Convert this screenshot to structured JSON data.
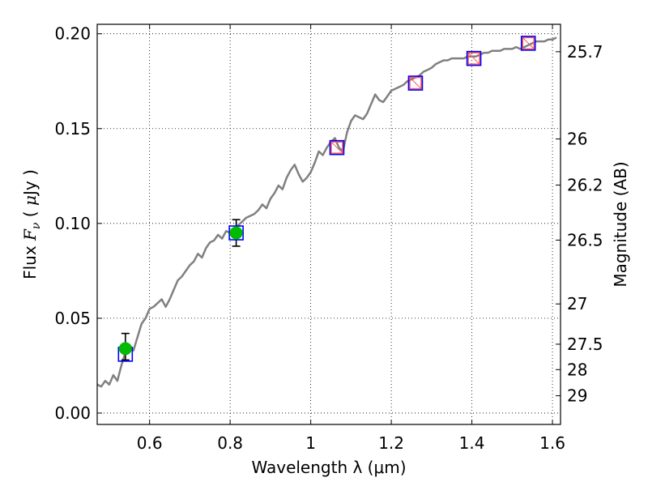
{
  "chart_data": {
    "type": "scatter",
    "xlabel": "Wavelength  λ (μm)",
    "ylabel_left": "Flux  F_ν  ( μJy )",
    "ylabel_left_parts": {
      "prefix": "Flux  ",
      "sym": "F",
      "sub": "ν",
      "open": "  ( ",
      "mu": "μ",
      "unit": "Jy )"
    },
    "ylabel_right": "Magnitude (AB)",
    "xlim": [
      0.47,
      1.62
    ],
    "ylim": [
      -0.006,
      0.205
    ],
    "x_ticks": [
      0.6,
      0.8,
      1.0,
      1.2,
      1.4,
      1.6
    ],
    "x_tick_labels": [
      "0.6",
      "0.8",
      "1",
      "1.2",
      "1.4",
      "1.6"
    ],
    "y_ticks": [
      0.0,
      0.05,
      0.1,
      0.15,
      0.2
    ],
    "y_tick_labels": [
      "0.00",
      "0.05",
      "0.10",
      "0.15",
      "0.20"
    ],
    "mag_ticks": [
      25.7,
      26,
      26.2,
      26.5,
      27,
      27.5,
      28,
      29
    ],
    "mag_tick_labels": [
      "25.7",
      "26",
      "26.2",
      "26.5",
      "27",
      "27.5",
      "28",
      "29"
    ],
    "grid": true,
    "colors": {
      "spectrum": "#808080",
      "model_box": "#0000ff",
      "observed_box": "#ff5555",
      "observed_point": "#00bb00",
      "errorbar": "#000000"
    },
    "spectrum": {
      "name": "model spectrum",
      "x": [
        0.47,
        0.48,
        0.49,
        0.5,
        0.51,
        0.52,
        0.53,
        0.54,
        0.55,
        0.56,
        0.57,
        0.58,
        0.59,
        0.6,
        0.61,
        0.62,
        0.63,
        0.64,
        0.65,
        0.66,
        0.67,
        0.68,
        0.69,
        0.7,
        0.71,
        0.72,
        0.73,
        0.74,
        0.75,
        0.76,
        0.77,
        0.78,
        0.79,
        0.8,
        0.81,
        0.82,
        0.83,
        0.84,
        0.85,
        0.86,
        0.87,
        0.88,
        0.89,
        0.9,
        0.91,
        0.92,
        0.93,
        0.94,
        0.95,
        0.96,
        0.97,
        0.98,
        0.99,
        1.0,
        1.01,
        1.02,
        1.03,
        1.04,
        1.05,
        1.06,
        1.07,
        1.08,
        1.09,
        1.1,
        1.11,
        1.12,
        1.13,
        1.14,
        1.15,
        1.16,
        1.17,
        1.18,
        1.19,
        1.2,
        1.21,
        1.22,
        1.23,
        1.24,
        1.25,
        1.26,
        1.27,
        1.28,
        1.29,
        1.3,
        1.31,
        1.32,
        1.33,
        1.34,
        1.35,
        1.36,
        1.37,
        1.38,
        1.39,
        1.4,
        1.41,
        1.42,
        1.43,
        1.44,
        1.45,
        1.46,
        1.47,
        1.48,
        1.49,
        1.5,
        1.51,
        1.52,
        1.53,
        1.54,
        1.55,
        1.56,
        1.57,
        1.58,
        1.59,
        1.6,
        1.61
      ],
      "y": [
        0.015,
        0.014,
        0.017,
        0.015,
        0.02,
        0.017,
        0.025,
        0.032,
        0.036,
        0.033,
        0.04,
        0.047,
        0.05,
        0.055,
        0.056,
        0.058,
        0.06,
        0.056,
        0.06,
        0.065,
        0.07,
        0.072,
        0.075,
        0.078,
        0.08,
        0.084,
        0.082,
        0.087,
        0.09,
        0.091,
        0.094,
        0.092,
        0.096,
        0.095,
        0.097,
        0.099,
        0.101,
        0.103,
        0.104,
        0.105,
        0.107,
        0.11,
        0.108,
        0.113,
        0.116,
        0.12,
        0.118,
        0.124,
        0.128,
        0.131,
        0.126,
        0.122,
        0.124,
        0.127,
        0.132,
        0.138,
        0.136,
        0.14,
        0.143,
        0.145,
        0.14,
        0.138,
        0.148,
        0.154,
        0.157,
        0.156,
        0.155,
        0.158,
        0.163,
        0.168,
        0.165,
        0.164,
        0.167,
        0.17,
        0.171,
        0.172,
        0.173,
        0.175,
        0.176,
        0.177,
        0.178,
        0.18,
        0.181,
        0.182,
        0.184,
        0.185,
        0.186,
        0.186,
        0.187,
        0.187,
        0.187,
        0.187,
        0.188,
        0.188,
        0.188,
        0.189,
        0.19,
        0.19,
        0.191,
        0.191,
        0.191,
        0.192,
        0.192,
        0.192,
        0.193,
        0.192,
        0.193,
        0.194,
        0.195,
        0.196,
        0.196,
        0.196,
        0.197,
        0.197,
        0.198
      ]
    },
    "model_boxes": {
      "name": "model photometry",
      "x": [
        0.54,
        0.815,
        1.065,
        1.26,
        1.405,
        1.54
      ],
      "y": [
        0.031,
        0.095,
        0.14,
        0.174,
        0.187,
        0.195
      ]
    },
    "observed_boxes": {
      "name": "observed photometry (boxes)",
      "x": [
        1.065,
        1.26,
        1.405,
        1.54
      ],
      "y": [
        0.14,
        0.174,
        0.187,
        0.195
      ]
    },
    "observed_points": {
      "name": "observed photometry (points)",
      "x": [
        0.54,
        0.815
      ],
      "y": [
        0.034,
        0.095
      ],
      "yerr_low": [
        0.028,
        0.088
      ],
      "yerr_high": [
        0.042,
        0.102
      ]
    }
  }
}
